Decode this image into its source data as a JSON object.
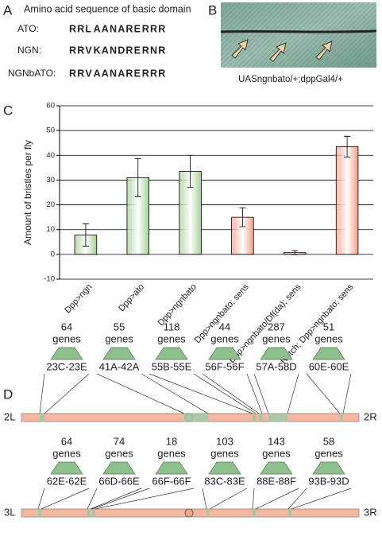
{
  "panel_a": {
    "letter": "A",
    "title": "Amino acid sequence of basic domain",
    "rows": [
      {
        "name": "ATO:",
        "sequence": [
          "R",
          "R",
          "L",
          "A",
          "A",
          "N",
          "A",
          "R",
          "E",
          "R",
          "R",
          "R"
        ],
        "colors": [
          "#d6336c",
          "#d6336c",
          "#d6336c",
          "#f39c12",
          "#f39c12",
          "#f39c12",
          "#f39c12",
          "#f39c12",
          "#f39c12",
          "#f39c12",
          "#d6336c",
          "#d6336c"
        ]
      },
      {
        "name": "NGN:",
        "sequence": [
          "R",
          "R",
          "V",
          "K",
          "A",
          "N",
          "D",
          "R",
          "E",
          "R",
          "N",
          "R"
        ],
        "colors": [
          "#6aa84f",
          "#6aa84f",
          "#6aa84f",
          "#2e86c1",
          "#6aa84f",
          "#6aa84f",
          "#6aa84f",
          "#f39c12",
          "#f39c12",
          "#f39c12",
          "#2e86c1",
          "#6aa84f"
        ]
      },
      {
        "name": "NGNbATO:",
        "sequence": [
          "R",
          "R",
          "V",
          "A",
          "A",
          "N",
          "A",
          "R",
          "E",
          "R",
          "R",
          "R"
        ],
        "colors": [
          "#6aa84f",
          "#6aa84f",
          "#6aa84f",
          "#f39c12",
          "#f39c12",
          "#f39c12",
          "#f39c12",
          "#f39c12",
          "#f39c12",
          "#f39c12",
          "#d6336c",
          "#d6336c"
        ]
      }
    ]
  },
  "panel_b": {
    "letter": "B",
    "caption": "UASngnbato/+;dppGal4/+"
  },
  "chart_data": {
    "type": "bar",
    "letter": "C",
    "categories": [
      "Dpp>ngn",
      "Dpp>ato",
      "Dpp>ngnbato",
      "Dpp>ngnbato; sens",
      "Dpp>ngnbato/Df(da); sens",
      "Notch; Dpp>ngnbato; sens"
    ],
    "values": [
      7.8,
      31,
      33.5,
      15,
      0.7,
      43.5
    ],
    "errors": [
      4.5,
      7.7,
      6.5,
      3.8,
      0.8,
      4.2
    ],
    "colors": [
      "#a9cf9b",
      "#a9cf9b",
      "#a9cf9b",
      "#f2a08c",
      "#f2a08c",
      "#f2a08c"
    ],
    "ylabel": "Amount of bristles per fly",
    "ylim": [
      -10,
      60
    ],
    "yticks": [
      -10,
      0,
      10,
      20,
      30,
      40,
      50,
      60
    ],
    "grid": true
  },
  "panel_d": {
    "letter": "D",
    "chromosomes": [
      {
        "left": "2L",
        "right": "2R",
        "clusters": [
          {
            "count": 64,
            "unit": "genes",
            "region": "23C-23E"
          },
          {
            "count": 55,
            "unit": "genes",
            "region": "41A-42A"
          },
          {
            "count": 118,
            "unit": "genes",
            "region": "55B-55E"
          },
          {
            "count": 44,
            "unit": "genes",
            "region": "56F-56F"
          },
          {
            "count": 287,
            "unit": "genes",
            "region": "57A-58D"
          },
          {
            "count": 51,
            "unit": "genes",
            "region": "60E-60E"
          }
        ]
      },
      {
        "left": "3L",
        "right": "3R",
        "clusters": [
          {
            "count": 64,
            "unit": "genes",
            "region": "62E-62E"
          },
          {
            "count": 74,
            "unit": "genes",
            "region": "66D-66E"
          },
          {
            "count": 18,
            "unit": "genes",
            "region": "66F-66F"
          },
          {
            "count": 103,
            "unit": "genes",
            "region": "83C-83E"
          },
          {
            "count": 143,
            "unit": "genes",
            "region": "88E-88F"
          },
          {
            "count": 58,
            "unit": "genes",
            "region": "93B-93D"
          }
        ]
      }
    ]
  }
}
